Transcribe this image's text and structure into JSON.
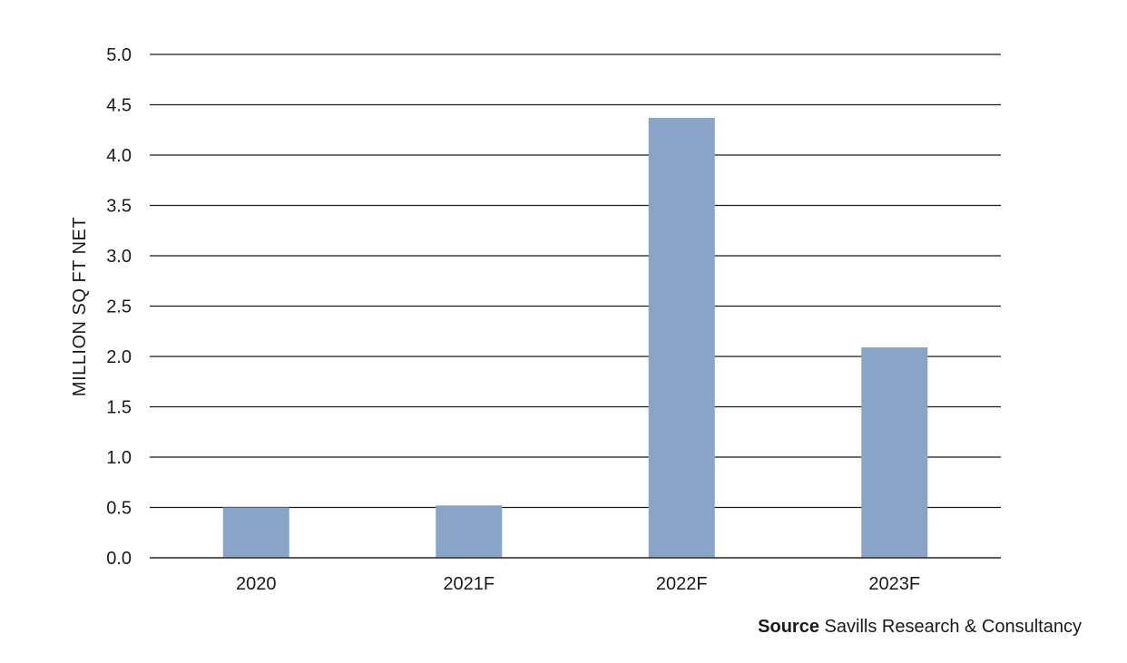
{
  "chart_data": {
    "type": "bar",
    "categories": [
      "2020",
      "2021F",
      "2022F",
      "2023F"
    ],
    "values": [
      0.5,
      0.52,
      4.37,
      2.09
    ],
    "ylabel": "MILLION SQ FT NET",
    "xlabel": "",
    "ylim": [
      0,
      5
    ],
    "yticks": [
      "0.0",
      "0.5",
      "1.0",
      "1.5",
      "2.0",
      "2.5",
      "3.0",
      "3.5",
      "4.0",
      "4.5",
      "5.0"
    ],
    "grid": true,
    "legend": "none",
    "bar_color": "#8aa4c8"
  },
  "source": {
    "label": "Source",
    "text": "Savills Research & Consultancy"
  }
}
